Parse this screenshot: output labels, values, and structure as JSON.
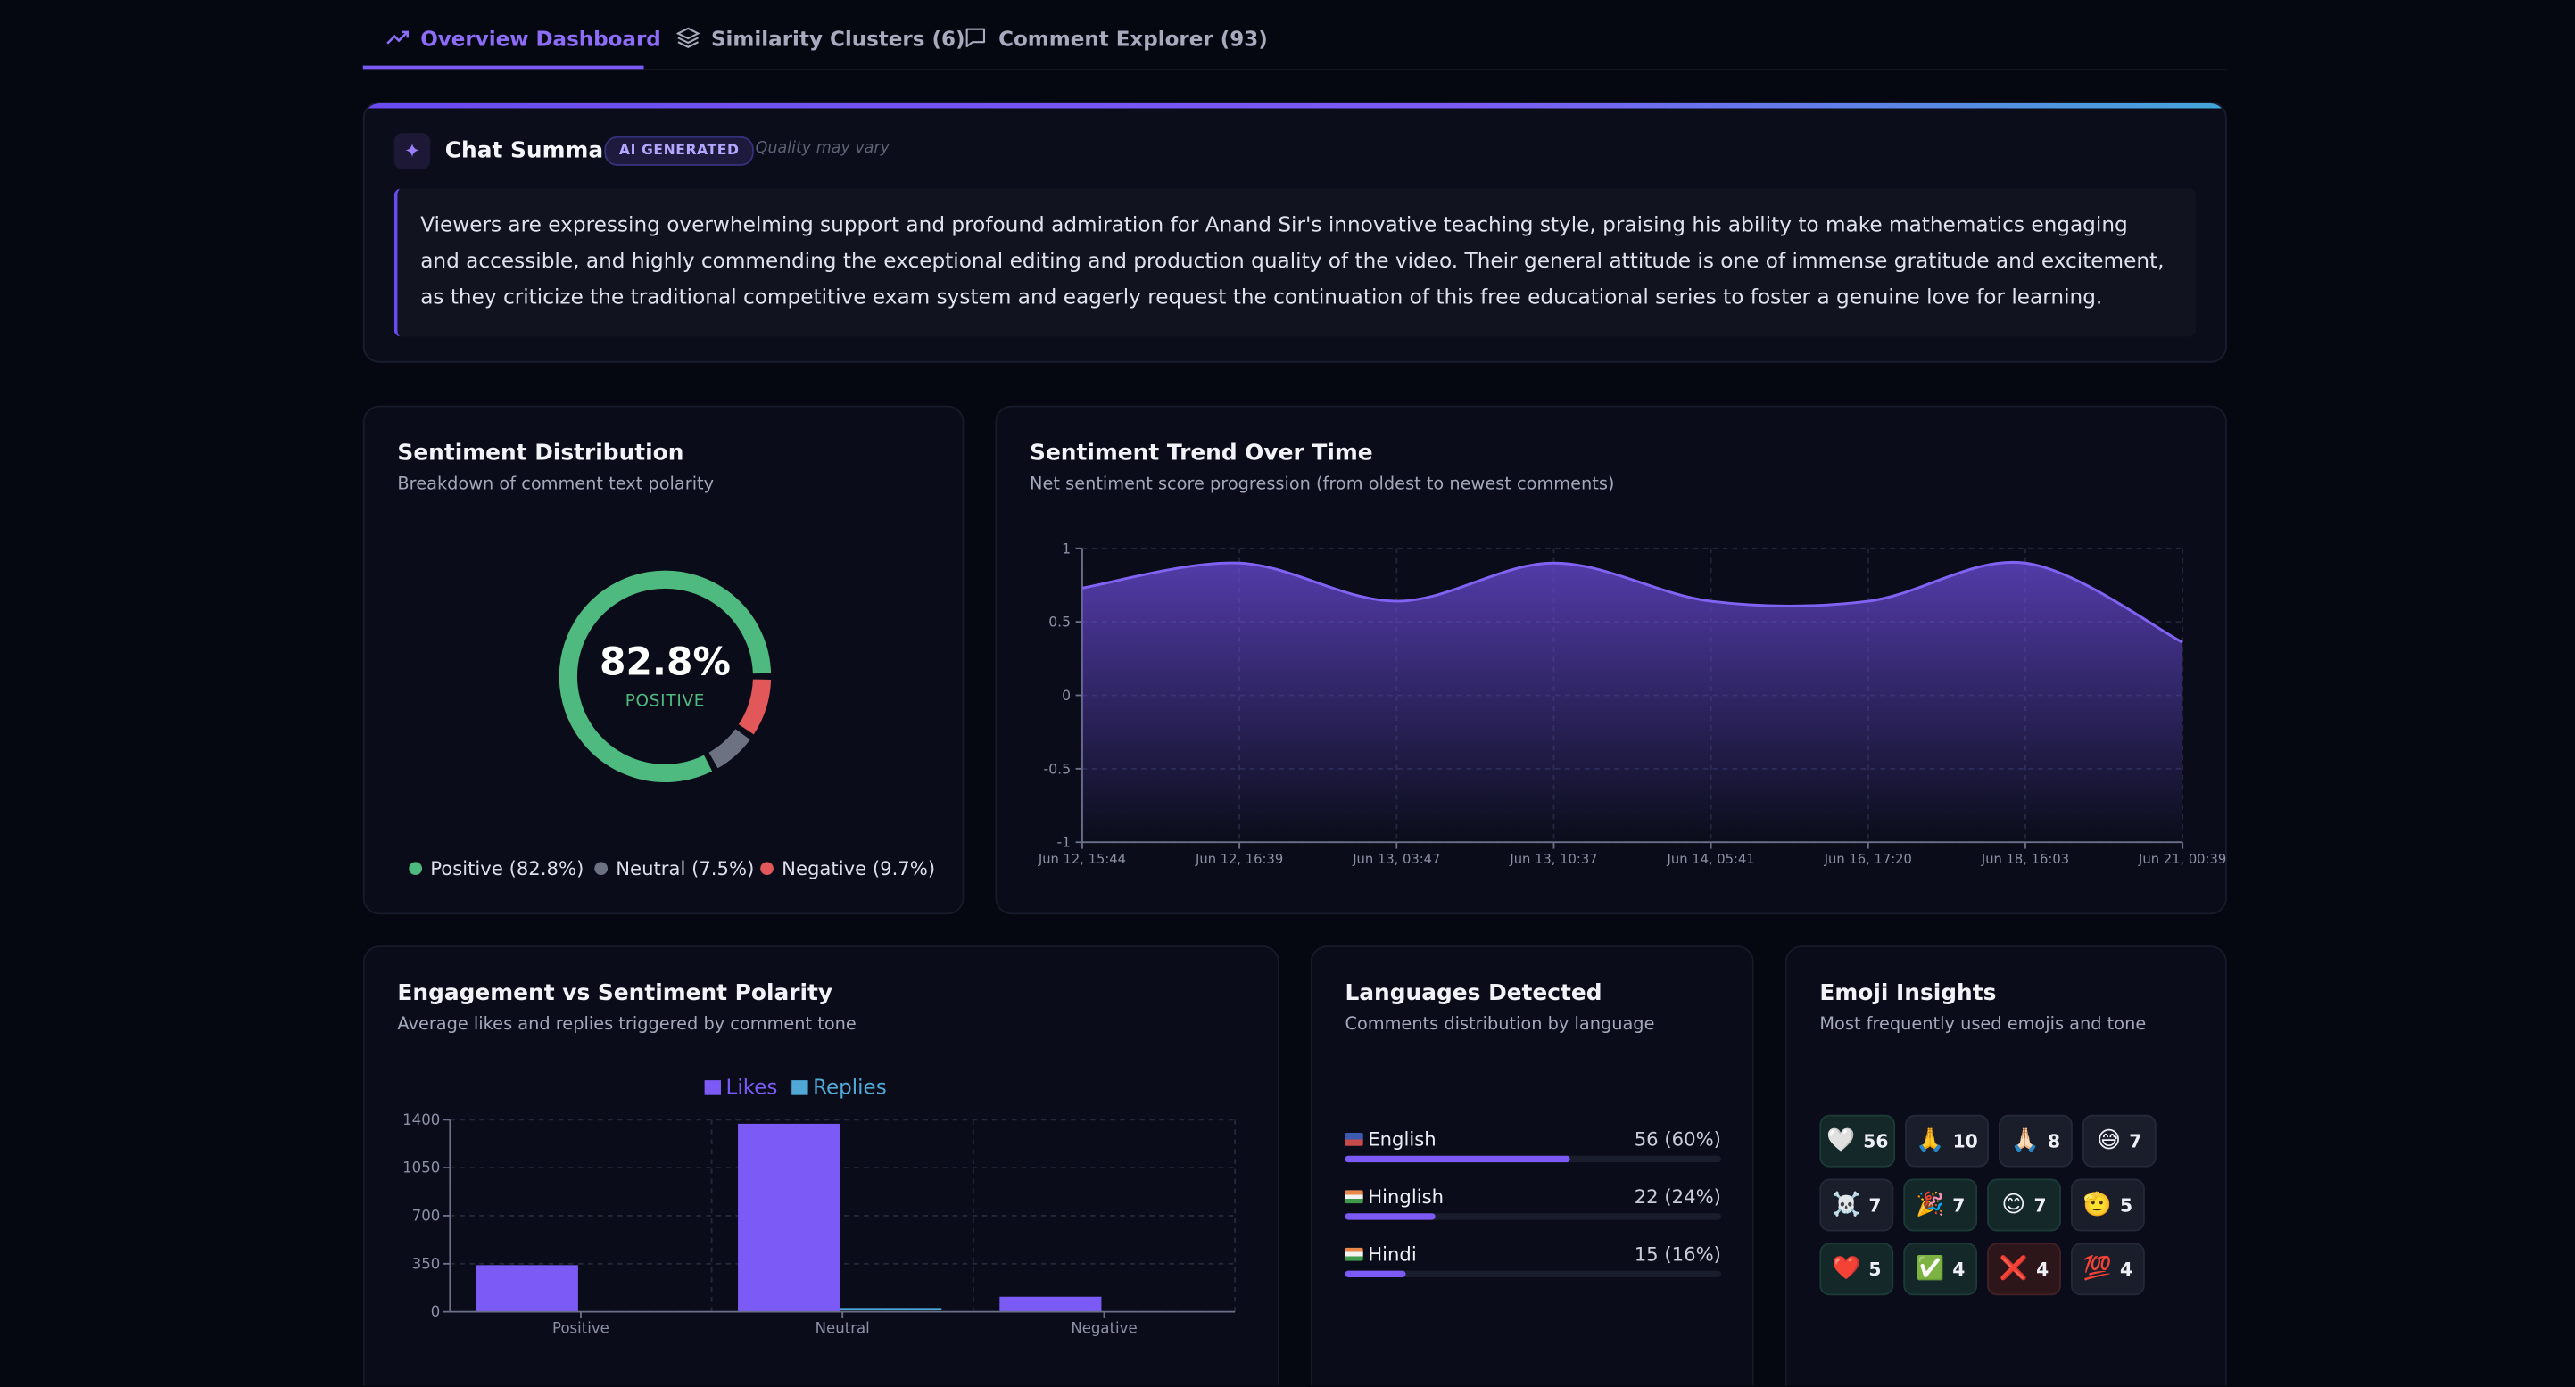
{
  "tabs": [
    {
      "label": "Overview Dashboard",
      "icon": "trending-up-icon",
      "active": true
    },
    {
      "label": "Similarity Clusters (6)",
      "icon": "layers-icon",
      "active": false
    },
    {
      "label": "Comment Explorer (93)",
      "icon": "message-square-icon",
      "active": false
    }
  ],
  "summary": {
    "title": "Chat Summary",
    "badge": "AI GENERATED",
    "note": "Quality may vary",
    "text": "Viewers are expressing overwhelming support and profound admiration for Anand Sir's innovative teaching style, praising his ability to make mathematics engaging and accessible, and highly commending the exceptional editing and production quality of the video. Their general attitude is one of immense gratitude and excitement, as they criticize the traditional competitive exam system and eagerly request the continuation of this free educational series to foster a genuine love for learning."
  },
  "sentiment": {
    "title": "Sentiment Distribution",
    "subtitle": "Breakdown of comment text polarity",
    "center_value": "82.8%",
    "center_label": "POSITIVE",
    "legend": [
      {
        "label": "Positive (82.8%)",
        "color": "#4fba80"
      },
      {
        "label": "Neutral (7.5%)",
        "color": "#6d7283"
      },
      {
        "label": "Negative (9.7%)",
        "color": "#e2575a"
      }
    ]
  },
  "trend": {
    "title": "Sentiment Trend Over Time",
    "subtitle": "Net sentiment score progression (from oldest to newest comments)"
  },
  "engagement": {
    "title": "Engagement vs Sentiment Polarity",
    "subtitle": "Average likes and replies triggered by comment tone"
  },
  "languages": {
    "title": "Languages Detected",
    "subtitle": "Comments distribution by language",
    "items": [
      {
        "name": "English",
        "value": "56 (60%)",
        "fraction": 0.6
      },
      {
        "name": "Hinglish",
        "value": "22 (24%)",
        "fraction": 0.24
      },
      {
        "name": "Hindi",
        "value": "15 (16%)",
        "fraction": 0.16
      }
    ]
  },
  "emoji": {
    "title": "Emoji Insights",
    "subtitle": "Most frequently used emojis and tone",
    "items": [
      {
        "emoji": "🤍",
        "count": "56",
        "tone": "positive"
      },
      {
        "emoji": "🙏",
        "count": "10",
        "tone": "neutral"
      },
      {
        "emoji": "🙏🏻",
        "count": "8",
        "tone": "neutral"
      },
      {
        "emoji": "😅",
        "count": "7",
        "tone": "neutral"
      },
      {
        "emoji": "☠️",
        "count": "7",
        "tone": "neutral"
      },
      {
        "emoji": "🎉",
        "count": "7",
        "tone": "positive"
      },
      {
        "emoji": "😊",
        "count": "7",
        "tone": "positive"
      },
      {
        "emoji": "🫡",
        "count": "5",
        "tone": "neutral"
      },
      {
        "emoji": "❤️",
        "count": "5",
        "tone": "positive"
      },
      {
        "emoji": "✅",
        "count": "4",
        "tone": "positive"
      },
      {
        "emoji": "❌",
        "count": "4",
        "tone": "negative"
      },
      {
        "emoji": "💯",
        "count": "4",
        "tone": "neutral"
      }
    ]
  },
  "colors": {
    "accent": "#7b5af6",
    "positive": "#4fba80",
    "neutral": "#6d7283",
    "negative": "#e2575a",
    "replies": "#4fa8d6"
  },
  "chart_data": [
    {
      "type": "pie",
      "categories": [
        "Positive",
        "Neutral",
        "Negative"
      ],
      "values": [
        82.8,
        7.5,
        9.7
      ]
    },
    {
      "type": "area",
      "x": [
        "Jun 12, 15:44",
        "Jun 12, 16:39",
        "Jun 13, 03:47",
        "Jun 13, 10:37",
        "Jun 14, 05:41",
        "Jun 16, 17:20",
        "Jun 18, 16:03",
        "Jun 21, 00:39"
      ],
      "values": [
        0.73,
        0.9,
        0.64,
        0.9,
        0.64,
        0.64,
        0.9,
        0.36
      ],
      "ylim": [
        -1,
        1
      ],
      "yticks": [
        "1",
        "0.5",
        "0",
        "-0.5",
        "-1"
      ]
    },
    {
      "type": "bar",
      "categories": [
        "Positive",
        "Neutral",
        "Negative"
      ],
      "series": [
        {
          "name": "Likes",
          "values": [
            340,
            1370,
            110
          ]
        },
        {
          "name": "Replies",
          "values": [
            0,
            10,
            0
          ]
        }
      ],
      "ylim": [
        0,
        1400
      ],
      "yticks": [
        "1400",
        "1050",
        "700",
        "350",
        "0"
      ]
    }
  ]
}
